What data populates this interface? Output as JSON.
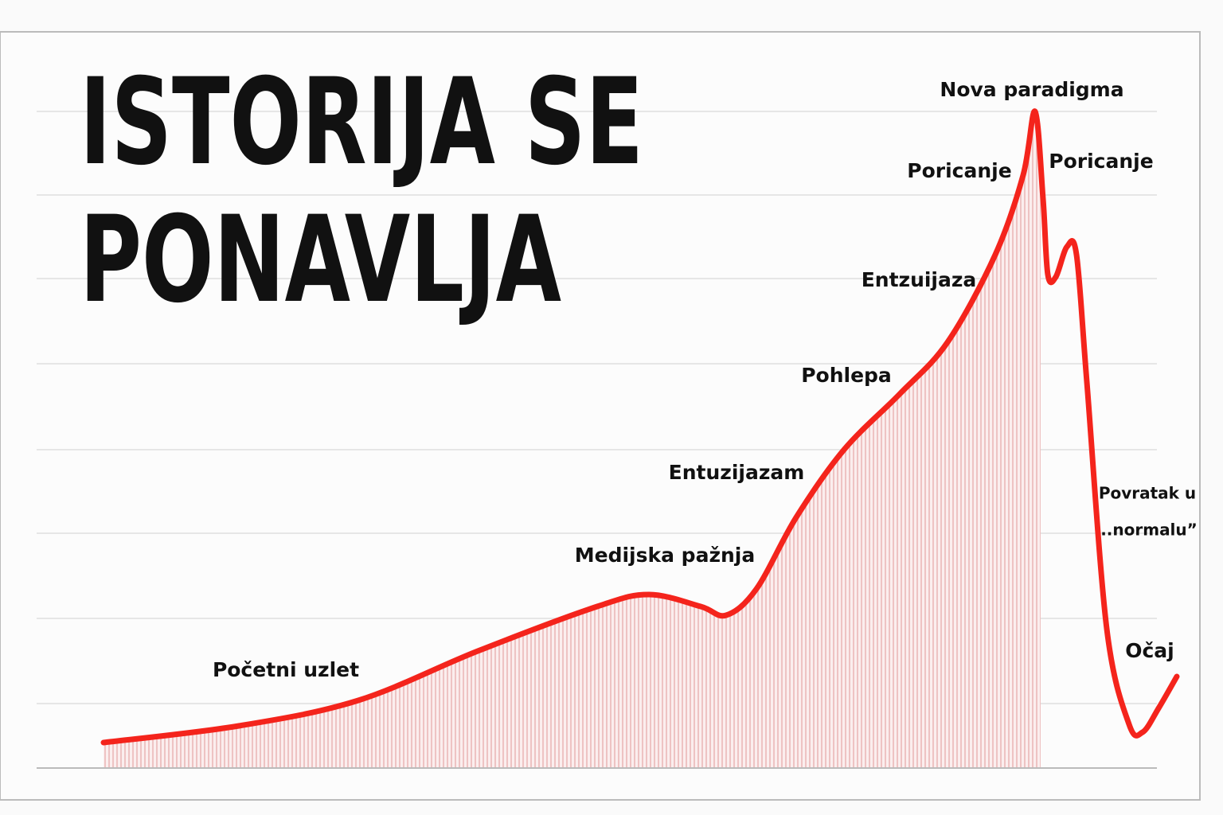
{
  "title": {
    "line1": "ISTORIJA SE",
    "line2": "PONAVLJA"
  },
  "labels": [
    "Nova paradigma",
    "Poricanje",
    "Poricanje",
    "Entzuijaza",
    "Pohlepa",
    "Entuzijazam",
    "Medijska pažnja",
    "Početni uzlet",
    "Povratak u",
    "..normalu”",
    "Očaj"
  ]
}
